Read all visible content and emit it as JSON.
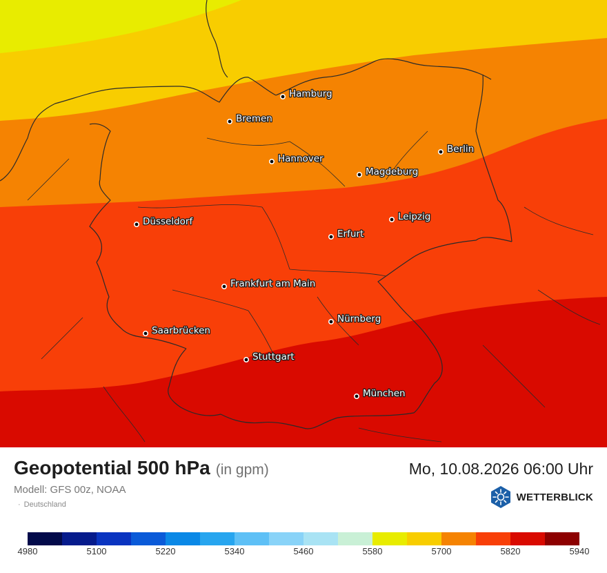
{
  "map": {
    "colors": {
      "c5640": "#e8ec00",
      "c5700": "#f8cd00",
      "c5760": "#f58302",
      "c5820": "#f83f08",
      "c5880": "#d90a00",
      "border": "#2a2a2a"
    },
    "cities": [
      {
        "name": "Hamburg"
      },
      {
        "name": "Bremen"
      },
      {
        "name": "Berlin"
      },
      {
        "name": "Hannover"
      },
      {
        "name": "Magdeburg"
      },
      {
        "name": "Düsseldorf"
      },
      {
        "name": "Leipzig"
      },
      {
        "name": "Erfurt"
      },
      {
        "name": "Frankfurt am Main"
      },
      {
        "name": "Nürnberg"
      },
      {
        "name": "Saarbrücken"
      },
      {
        "name": "Stuttgart"
      },
      {
        "name": "München"
      }
    ]
  },
  "header": {
    "title": "Geopotential 500 hPa",
    "unit": "(in gpm)",
    "datetime": "Mo, 10.08.2026 06:00 Uhr",
    "model": "Modell: GFS 00z, NOAA",
    "region": "Deutschland",
    "brand": "WETTERBLICK",
    "brand_icon": "sun-snowflake-logo-icon",
    "brand_color": "#1b5fa8"
  },
  "legend": {
    "colors": [
      "#020a4a",
      "#061b8c",
      "#0a34c0",
      "#0a5ad8",
      "#0a88e6",
      "#27a5ef",
      "#5ec0f6",
      "#89d3f8",
      "#a9e3f4",
      "#c9f0d6",
      "#e8ec00",
      "#f8cd00",
      "#f58302",
      "#f83f08",
      "#d90a00",
      "#8d0000"
    ],
    "ticks": [
      "4980",
      "5100",
      "5220",
      "5340",
      "5460",
      "5580",
      "5700",
      "5820",
      "5940"
    ]
  }
}
